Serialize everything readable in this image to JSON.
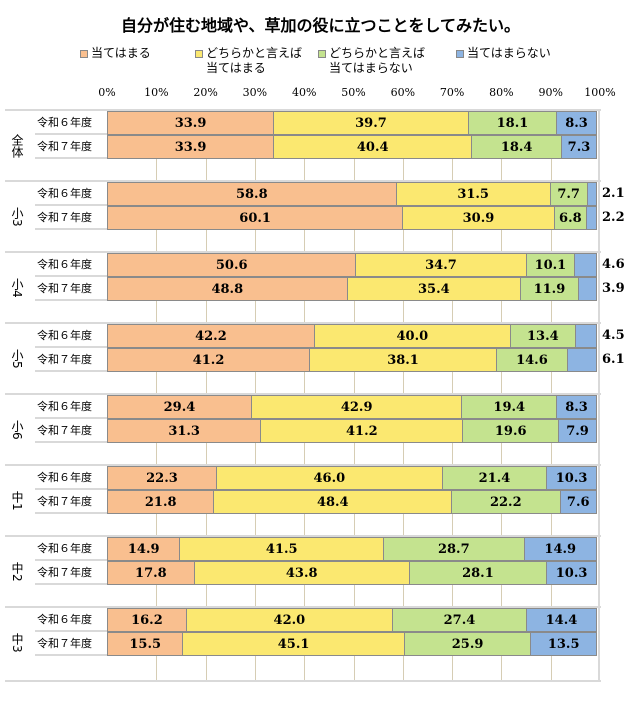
{
  "title": "自分が住む地域や、草加の役に立つことをしてみたい。",
  "legend": [
    {
      "label": "当てはまる",
      "color": "#F9BF8F"
    },
    {
      "label": "どちらかと言えば\n当てはまる",
      "color": "#FBE870"
    },
    {
      "label": "どちらかと言えば\n当てはまらない",
      "color": "#C4E38F"
    },
    {
      "label": "当てはまらない",
      "color": "#8DB4E2"
    }
  ],
  "axis": {
    "ticks": [
      "0%",
      "10%",
      "20%",
      "30%",
      "40%",
      "50%",
      "60%",
      "70%",
      "80%",
      "90%",
      "100%"
    ]
  },
  "chart_data": {
    "type": "bar",
    "orientation": "horizontal",
    "stacked": true,
    "title": "自分が住む地域や、草加の役に立つことをしてみたい。",
    "xlabel": "",
    "ylabel": "",
    "xlim": [
      0,
      100
    ],
    "legend_position": "top",
    "grid": true,
    "series_names": [
      "当てはまる",
      "どちらかと言えば当てはまる",
      "どちらかと言えば当てはまらない",
      "当てはまらない"
    ],
    "series_colors": [
      "#F9BF8F",
      "#FBE870",
      "#C4E38F",
      "#8DB4E2"
    ],
    "groups": [
      {
        "group": "全体",
        "rows": [
          {
            "label": "令和６年度",
            "values": [
              33.9,
              39.7,
              18.1,
              8.3
            ]
          },
          {
            "label": "令和７年度",
            "values": [
              33.9,
              40.4,
              18.4,
              7.3
            ]
          }
        ]
      },
      {
        "group": "小3",
        "rows": [
          {
            "label": "令和６年度",
            "values": [
              58.8,
              31.5,
              7.7,
              2.1
            ]
          },
          {
            "label": "令和７年度",
            "values": [
              60.1,
              30.9,
              6.8,
              2.2
            ]
          }
        ]
      },
      {
        "group": "小4",
        "rows": [
          {
            "label": "令和６年度",
            "values": [
              50.6,
              34.7,
              10.1,
              4.6
            ]
          },
          {
            "label": "令和７年度",
            "values": [
              48.8,
              35.4,
              11.9,
              3.9
            ]
          }
        ]
      },
      {
        "group": "小5",
        "rows": [
          {
            "label": "令和６年度",
            "values": [
              42.2,
              40.0,
              13.4,
              4.5
            ]
          },
          {
            "label": "令和７年度",
            "values": [
              41.2,
              38.1,
              14.6,
              6.1
            ]
          }
        ]
      },
      {
        "group": "小6",
        "rows": [
          {
            "label": "令和６年度",
            "values": [
              29.4,
              42.9,
              19.4,
              8.3
            ]
          },
          {
            "label": "令和７年度",
            "values": [
              31.3,
              41.2,
              19.6,
              7.9
            ]
          }
        ]
      },
      {
        "group": "中1",
        "rows": [
          {
            "label": "令和６年度",
            "values": [
              22.3,
              46.0,
              21.4,
              10.3
            ]
          },
          {
            "label": "令和７年度",
            "values": [
              21.8,
              48.4,
              22.2,
              7.6
            ]
          }
        ]
      },
      {
        "group": "中2",
        "rows": [
          {
            "label": "令和６年度",
            "values": [
              14.9,
              41.5,
              28.7,
              14.9
            ]
          },
          {
            "label": "令和７年度",
            "values": [
              17.8,
              43.8,
              28.1,
              10.3
            ]
          }
        ]
      },
      {
        "group": "中3",
        "rows": [
          {
            "label": "令和６年度",
            "values": [
              16.2,
              42.0,
              27.4,
              14.4
            ]
          },
          {
            "label": "令和７年度",
            "values": [
              15.5,
              45.1,
              25.9,
              13.5
            ]
          }
        ]
      }
    ],
    "outside_labels_for_small_last_segment": true
  }
}
